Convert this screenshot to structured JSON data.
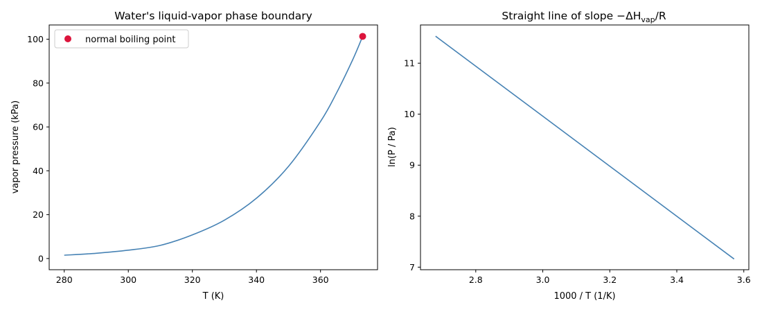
{
  "chart_data": [
    {
      "type": "line",
      "title": "Water's liquid-vapor phase boundary",
      "xlabel": "T (K)",
      "ylabel": "vapor pressure (kPa)",
      "xlim": [
        275.3,
        377.8
      ],
      "ylim": [
        -5.1,
        106.5
      ],
      "xticks": [
        280,
        300,
        320,
        340,
        360
      ],
      "yticks": [
        0,
        20,
        40,
        60,
        80,
        100
      ],
      "grid": false,
      "legend": {
        "placement": "top-left"
      },
      "series": [
        {
          "label": "",
          "color": "#4682b4",
          "x": [
            280,
            290,
            300,
            310,
            320,
            330,
            340,
            350,
            360,
            365,
            370,
            373.15
          ],
          "y": [
            1.5,
            2.4,
            3.8,
            6.0,
            10.8,
            17.5,
            27.5,
            42.0,
            62.5,
            75.5,
            90.5,
            101.3
          ]
        },
        {
          "label": "normal boiling point",
          "color": "#dc143c",
          "marker": "o",
          "x": [
            373.15
          ],
          "y": [
            101.3
          ]
        }
      ]
    },
    {
      "type": "line",
      "title_prefix": "Straight line of slope ",
      "title_symbol": "−ΔH",
      "title_subscript": "vap",
      "title_suffix": "/R",
      "xlabel": "1000 / T (1/K)",
      "ylabel": "ln(P / Pa)",
      "xlim": [
        2.635,
        3.615
      ],
      "ylim": [
        6.95,
        11.75
      ],
      "xticks": [
        "2.8",
        "3.0",
        "3.2",
        "3.4",
        "3.6"
      ],
      "yticks": [
        "7",
        "8",
        "9",
        "10",
        "11"
      ],
      "grid": false,
      "series": [
        {
          "label": "",
          "color": "#4682b4",
          "x": [
            2.68,
            3.571
          ],
          "y": [
            11.53,
            7.16
          ]
        }
      ]
    }
  ]
}
